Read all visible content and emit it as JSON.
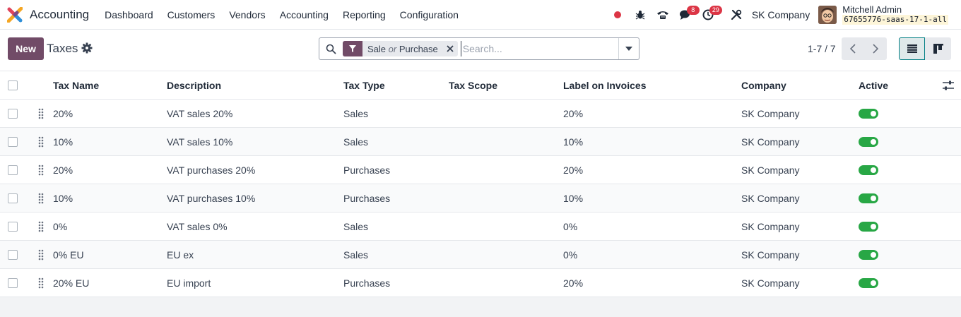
{
  "navbar": {
    "app_name": "Accounting",
    "menu": [
      "Dashboard",
      "Customers",
      "Vendors",
      "Accounting",
      "Reporting",
      "Configuration"
    ],
    "messages_badge": "8",
    "activities_badge": "29",
    "company": "SK Company",
    "user_name": "Mitchell Admin",
    "database": "67655776-saas-17-1-all"
  },
  "control": {
    "new_label": "New",
    "title": "Taxes",
    "facet_first": "Sale",
    "facet_or": "or",
    "facet_second": "Purchase",
    "search_placeholder": "Search...",
    "pager_value": "1-7 / 7"
  },
  "table": {
    "headers": [
      "Tax Name",
      "Description",
      "Tax Type",
      "Tax Scope",
      "Label on Invoices",
      "Company",
      "Active"
    ],
    "rows": [
      {
        "name": "20%",
        "description": "VAT sales 20%",
        "type": "Sales",
        "scope": "",
        "label": "20%",
        "company": "SK Company",
        "active": true
      },
      {
        "name": "10%",
        "description": "VAT sales 10%",
        "type": "Sales",
        "scope": "",
        "label": "10%",
        "company": "SK Company",
        "active": true
      },
      {
        "name": "20%",
        "description": "VAT purchases 20%",
        "type": "Purchases",
        "scope": "",
        "label": "20%",
        "company": "SK Company",
        "active": true
      },
      {
        "name": "10%",
        "description": "VAT purchases 10%",
        "type": "Purchases",
        "scope": "",
        "label": "10%",
        "company": "SK Company",
        "active": true
      },
      {
        "name": "0%",
        "description": "VAT sales 0%",
        "type": "Sales",
        "scope": "",
        "label": "0%",
        "company": "SK Company",
        "active": true
      },
      {
        "name": "0% EU",
        "description": "EU ex",
        "type": "Sales",
        "scope": "",
        "label": "0%",
        "company": "SK Company",
        "active": true
      },
      {
        "name": "20% EU",
        "description": "EU import",
        "type": "Purchases",
        "scope": "",
        "label": "20%",
        "company": "SK Company",
        "active": true
      }
    ]
  },
  "icons": {
    "app_logo": "accounting-logo-icon",
    "recording": "record-dot-icon",
    "debug": "bug-icon",
    "phone": "phone-icon",
    "messages": "chat-icon",
    "activities": "clock-icon",
    "tools": "tools-icon",
    "settings": "gear-icon",
    "search": "search-icon",
    "filter": "filter-icon",
    "remove": "close-icon",
    "dropdown": "caret-down-icon",
    "prev": "chevron-left-icon",
    "next": "chevron-right-icon",
    "list_view": "list-view-icon",
    "kanban_view": "kanban-view-icon",
    "drag": "drag-handle-icon",
    "optional_columns": "sliders-icon"
  },
  "colors": {
    "primary": "#714b67",
    "toggle_on": "#28a745",
    "badge": "#dc3545",
    "active_view": "#017e84"
  }
}
